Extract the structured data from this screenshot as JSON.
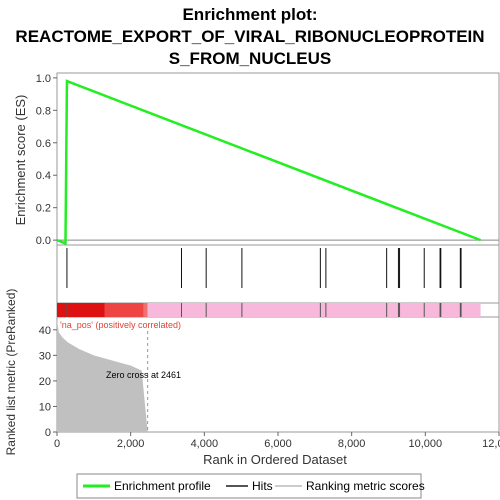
{
  "chart_data": {
    "type": "line",
    "title_line1": "Enrichment plot:",
    "title_line2": "REACTOME_EXPORT_OF_VIRAL_RIBONUCLEOPROTEIN",
    "title_line3": "S_FROM_NUCLEUS",
    "ylabel_top": "Enrichment score (ES)",
    "ylabel_bottom": "Ranked list metric (PreRanked)",
    "xlabel": "Rank in Ordered Dataset",
    "x_ticks": [
      "0",
      "2,000",
      "4,000",
      "6,000",
      "8,000",
      "10,000",
      "12,000"
    ],
    "x_tick_values": [
      0,
      2000,
      4000,
      6000,
      8000,
      10000,
      12000
    ],
    "y_ticks_top": [
      "0.0",
      "0.2",
      "0.4",
      "0.6",
      "0.8",
      "1.0"
    ],
    "y_tick_values_top": [
      0.0,
      0.2,
      0.4,
      0.6,
      0.8,
      1.0
    ],
    "y_ticks_bottom": [
      "0",
      "10",
      "20",
      "30",
      "40"
    ],
    "y_tick_values_bottom": [
      0,
      10,
      20,
      30,
      40
    ],
    "xlim": [
      0,
      12000
    ],
    "ylim_top": [
      -0.03,
      1.03
    ],
    "ylim_bottom": [
      0,
      45
    ],
    "series": [
      {
        "name": "Enrichment profile",
        "color": "#22ee22",
        "x": [
          0,
          230,
          270,
          11500
        ],
        "y": [
          0.0,
          -0.02,
          0.98,
          0.0
        ]
      }
    ],
    "hits": [
      270,
      3380,
      4050,
      5020,
      7150,
      7300,
      8950,
      9270,
      9300,
      9970,
      10400,
      10420,
      10950,
      10970
    ],
    "ranked_metric": {
      "x": [
        0,
        50,
        150,
        300,
        600,
        1000,
        1500,
        2000,
        2300,
        2461
      ],
      "y": [
        44,
        39,
        37,
        35,
        32.5,
        30,
        28,
        26,
        24,
        0
      ]
    },
    "zero_cross_label": "Zero cross at 2461",
    "positive_label": "'na_pos' (positively correlated)",
    "legend": [
      {
        "label": "Enrichment profile",
        "color": "#22ee22"
      },
      {
        "label": "Hits",
        "color": "#555555"
      },
      {
        "label": "Ranking metric scores",
        "color": "#cccccc"
      }
    ]
  }
}
